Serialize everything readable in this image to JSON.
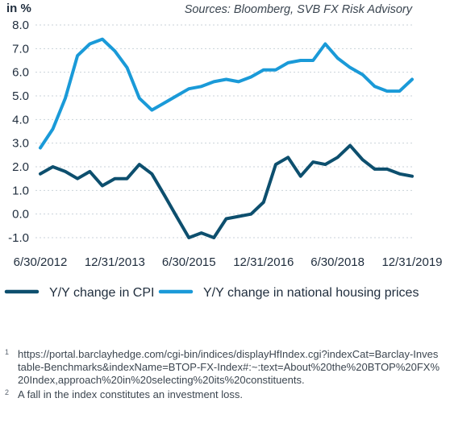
{
  "chart_data": {
    "type": "line",
    "unit_label": "in %",
    "source": "Sources: Bloomberg, SVB FX Risk Advisory",
    "ylim": [
      -1.0,
      8.0
    ],
    "y_ticks": [
      "8.0",
      "7.0",
      "6.0",
      "5.0",
      "4.0",
      "3.0",
      "2.0",
      "1.0",
      "0.0",
      "-1.0"
    ],
    "x_ticks": [
      "6/30/2012",
      "12/31/2013",
      "6/30/2015",
      "12/31/2016",
      "6/30/2018",
      "12/31/2019"
    ],
    "x_range": [
      "6/30/2012",
      "12/31/2019"
    ],
    "grid": "horizontal",
    "legend_position": "bottom",
    "series": [
      {
        "name": "Y/Y change in CPI",
        "color": "#0d4f6e",
        "x": [
          "2012-06-30",
          "2012-09-30",
          "2012-12-31",
          "2013-03-31",
          "2013-06-30",
          "2013-09-30",
          "2013-12-31",
          "2014-03-31",
          "2014-06-30",
          "2014-09-30",
          "2014-12-31",
          "2015-03-31",
          "2015-06-30",
          "2015-09-30",
          "2015-12-31",
          "2016-03-31",
          "2016-06-30",
          "2016-09-30",
          "2016-12-31",
          "2017-03-31",
          "2017-06-30",
          "2017-09-30",
          "2017-12-31",
          "2018-03-31",
          "2018-06-30",
          "2018-09-30",
          "2018-12-31",
          "2019-03-31",
          "2019-06-30",
          "2019-09-30",
          "2019-12-31"
        ],
        "values": [
          1.7,
          2.0,
          1.8,
          1.5,
          1.8,
          1.2,
          1.5,
          1.5,
          2.1,
          1.7,
          0.8,
          -0.1,
          -1.0,
          -0.8,
          -1.0,
          -0.2,
          -0.1,
          0.0,
          0.5,
          2.1,
          2.4,
          1.6,
          2.2,
          2.1,
          2.4,
          2.9,
          2.3,
          1.9,
          1.9,
          1.7,
          1.6
        ]
      },
      {
        "name": "Y/Y change in national housing prices",
        "color": "#1a9ad8",
        "x": [
          "2012-06-30",
          "2012-09-30",
          "2012-12-31",
          "2013-03-31",
          "2013-06-30",
          "2013-09-30",
          "2013-12-31",
          "2014-03-31",
          "2014-06-30",
          "2014-09-30",
          "2014-12-31",
          "2015-03-31",
          "2015-06-30",
          "2015-09-30",
          "2015-12-31",
          "2016-03-31",
          "2016-06-30",
          "2016-09-30",
          "2016-12-31",
          "2017-03-31",
          "2017-06-30",
          "2017-09-30",
          "2017-12-31",
          "2018-03-31",
          "2018-06-30",
          "2018-09-30",
          "2018-12-31",
          "2019-03-31",
          "2019-06-30",
          "2019-09-30",
          "2019-12-31"
        ],
        "values": [
          2.8,
          3.6,
          4.9,
          6.7,
          7.2,
          7.4,
          6.9,
          6.2,
          4.9,
          4.4,
          4.7,
          5.0,
          5.3,
          5.4,
          5.6,
          5.7,
          5.6,
          5.8,
          6.1,
          6.1,
          6.4,
          6.5,
          6.5,
          7.2,
          6.6,
          6.2,
          5.9,
          5.4,
          5.2,
          5.2,
          5.7
        ]
      }
    ]
  },
  "footnotes": [
    {
      "marker": "1",
      "text": "https://portal.barclayhedge.com/cgi-bin/indices/displayHfIndex.cgi?indexCat=Barclay-Investable-Benchmarks&indexName=BTOP-FX-Index#:~:text=About%20the%20BTOP%20FX%20Index,approach%20in%20selecting%20its%20constituents."
    },
    {
      "marker": "2",
      "text": "A fall in the index constitutes an investment loss."
    }
  ]
}
